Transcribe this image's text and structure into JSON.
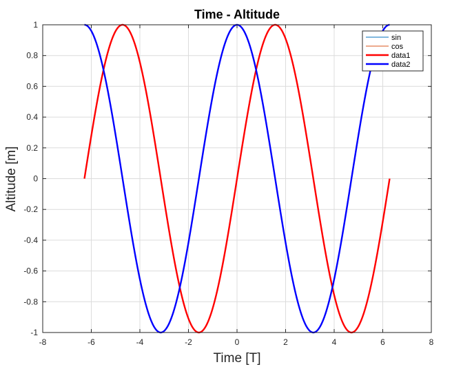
{
  "chart_data": {
    "type": "line",
    "title": "Time - Altitude",
    "xlabel": "Time [T]",
    "ylabel": "Altitude [m]",
    "xlim": [
      -8,
      8
    ],
    "ylim": [
      -1,
      1
    ],
    "x_ticks": [
      -8,
      -6,
      -4,
      -2,
      0,
      2,
      4,
      6,
      8
    ],
    "y_ticks": [
      -1,
      -0.8,
      -0.6,
      -0.4,
      -0.2,
      0,
      0.2,
      0.4,
      0.6,
      0.8,
      1
    ],
    "x_tick_labels": [
      "-8",
      "-6",
      "-4",
      "-2",
      "0",
      "2",
      "4",
      "6",
      "8"
    ],
    "y_tick_labels": [
      "-1",
      "-0.8",
      "-0.6",
      "-0.4",
      "-0.2",
      "0",
      "0.2",
      "0.4",
      "0.6",
      "0.8",
      "1"
    ],
    "grid": true,
    "legend_position": "top-right",
    "x_range": [
      -6.2832,
      6.2832
    ],
    "series": [
      {
        "name": "sin",
        "color": "#0072BD",
        "function": "sin",
        "line_weight": "thin",
        "drawn": false
      },
      {
        "name": "cos",
        "color": "#D95319",
        "function": "cos",
        "line_weight": "thin",
        "drawn": false
      },
      {
        "name": "data1",
        "color": "#FF0000",
        "function": "sin",
        "line_weight": "thick",
        "drawn": true
      },
      {
        "name": "data2",
        "color": "#0000FF",
        "function": "cos",
        "line_weight": "thick",
        "drawn": true
      }
    ]
  }
}
